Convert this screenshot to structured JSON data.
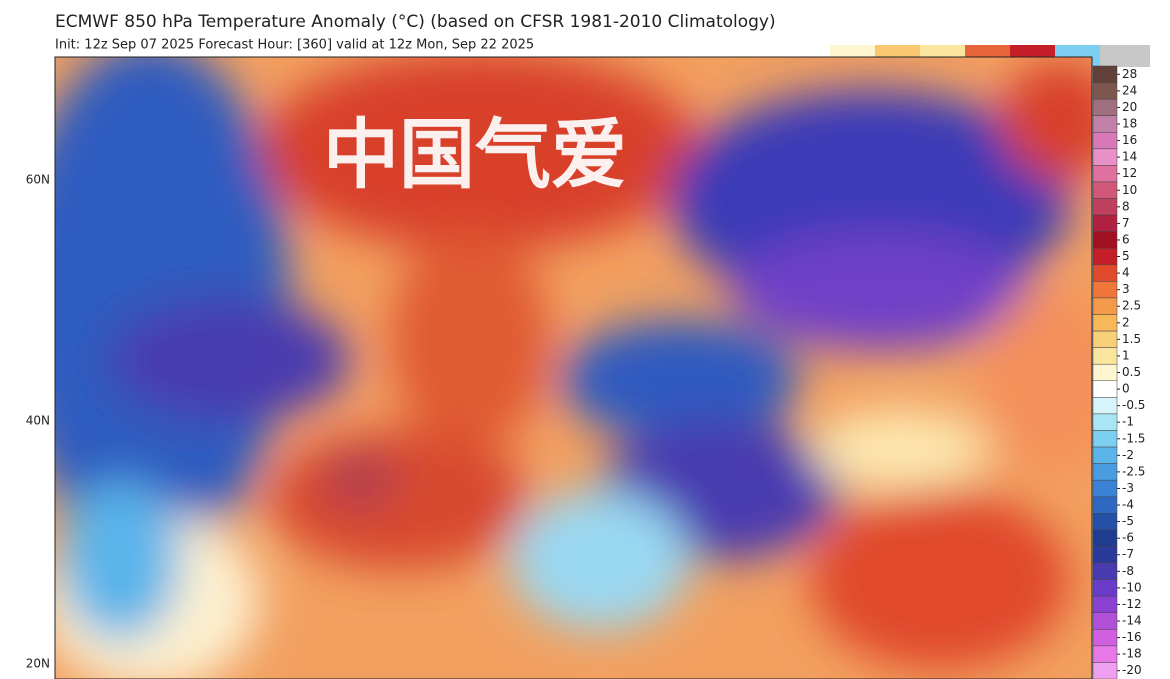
{
  "header": {
    "title": "ECMWF 850 hPa Temperature Anomaly (°C) (based on CFSR 1981-2010 Climatology)",
    "subtitle": "Init: 12z Sep 07 2025   Forecast Hour: [360]   valid at 12z Mon, Sep 22 2025"
  },
  "map": {
    "watermark": "中国气爱",
    "latitude_labels": [
      "60N",
      "40N",
      "20N"
    ]
  },
  "colorbar": {
    "levels": [
      {
        "value": 28,
        "color": "#604038"
      },
      {
        "value": 24,
        "color": "#7e5650"
      },
      {
        "value": 20,
        "color": "#a07080"
      },
      {
        "value": 18,
        "color": "#c080a8"
      },
      {
        "value": 16,
        "color": "#d878b8"
      },
      {
        "value": 14,
        "color": "#e890c8"
      },
      {
        "value": 12,
        "color": "#e070a0"
      },
      {
        "value": 10,
        "color": "#d05878"
      },
      {
        "value": 8,
        "color": "#c04060"
      },
      {
        "value": 7,
        "color": "#b02040"
      },
      {
        "value": 6,
        "color": "#a01020"
      },
      {
        "value": 5,
        "color": "#c41e28"
      },
      {
        "value": 4,
        "color": "#e04a2a"
      },
      {
        "value": 3,
        "color": "#f0763a"
      },
      {
        "value": 2.5,
        "color": "#f59a4a"
      },
      {
        "value": 2,
        "color": "#f7b85a"
      },
      {
        "value": 1.5,
        "color": "#f9d07a"
      },
      {
        "value": 1,
        "color": "#fbe6a0"
      },
      {
        "value": 0.5,
        "color": "#fdf6d0"
      },
      {
        "value": 0,
        "color": "#ffffff"
      },
      {
        "value": -0.5,
        "color": "#d8f4fb"
      },
      {
        "value": -1,
        "color": "#a8e6f5"
      },
      {
        "value": -1.5,
        "color": "#7ccff0"
      },
      {
        "value": -2,
        "color": "#5ab4ea"
      },
      {
        "value": -2.5,
        "color": "#4a9ce0"
      },
      {
        "value": -3,
        "color": "#3a82d4"
      },
      {
        "value": -4,
        "color": "#2e68c0"
      },
      {
        "value": -5,
        "color": "#2450a8"
      },
      {
        "value": -6,
        "color": "#1e3c90"
      },
      {
        "value": -7,
        "color": "#2a3a9a"
      },
      {
        "value": -8,
        "color": "#4a3ab0"
      },
      {
        "value": -10,
        "color": "#6a3ac8"
      },
      {
        "value": -12,
        "color": "#8a40d0"
      },
      {
        "value": -14,
        "color": "#b050d8"
      },
      {
        "value": -16,
        "color": "#d060e0"
      },
      {
        "value": -18,
        "color": "#e878e8"
      },
      {
        "value": -20,
        "color": "#f0a0f0"
      }
    ]
  }
}
